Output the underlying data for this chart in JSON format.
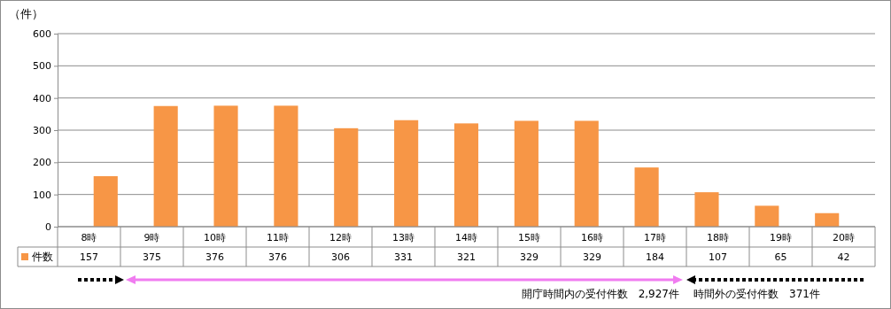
{
  "chart_data": {
    "type": "bar",
    "ylabel": "（件）",
    "categories": [
      "8時",
      "9時",
      "10時",
      "11時",
      "12時",
      "13時",
      "14時",
      "15時",
      "16時",
      "17時",
      "18時",
      "19時",
      "20時"
    ],
    "series": [
      {
        "name": "件数",
        "color": "#f79646",
        "values": [
          157,
          375,
          376,
          376,
          306,
          331,
          321,
          329,
          329,
          184,
          107,
          65,
          42
        ]
      }
    ],
    "ylim": [
      0,
      600
    ],
    "yticks": [
      0,
      100,
      200,
      300,
      400,
      500,
      600
    ],
    "grid": "y",
    "data_labels": true,
    "legend": "bottom",
    "annotations": [
      "開庁時間内の受付件数　2,927件",
      "時間外の受付件数　371件"
    ]
  }
}
